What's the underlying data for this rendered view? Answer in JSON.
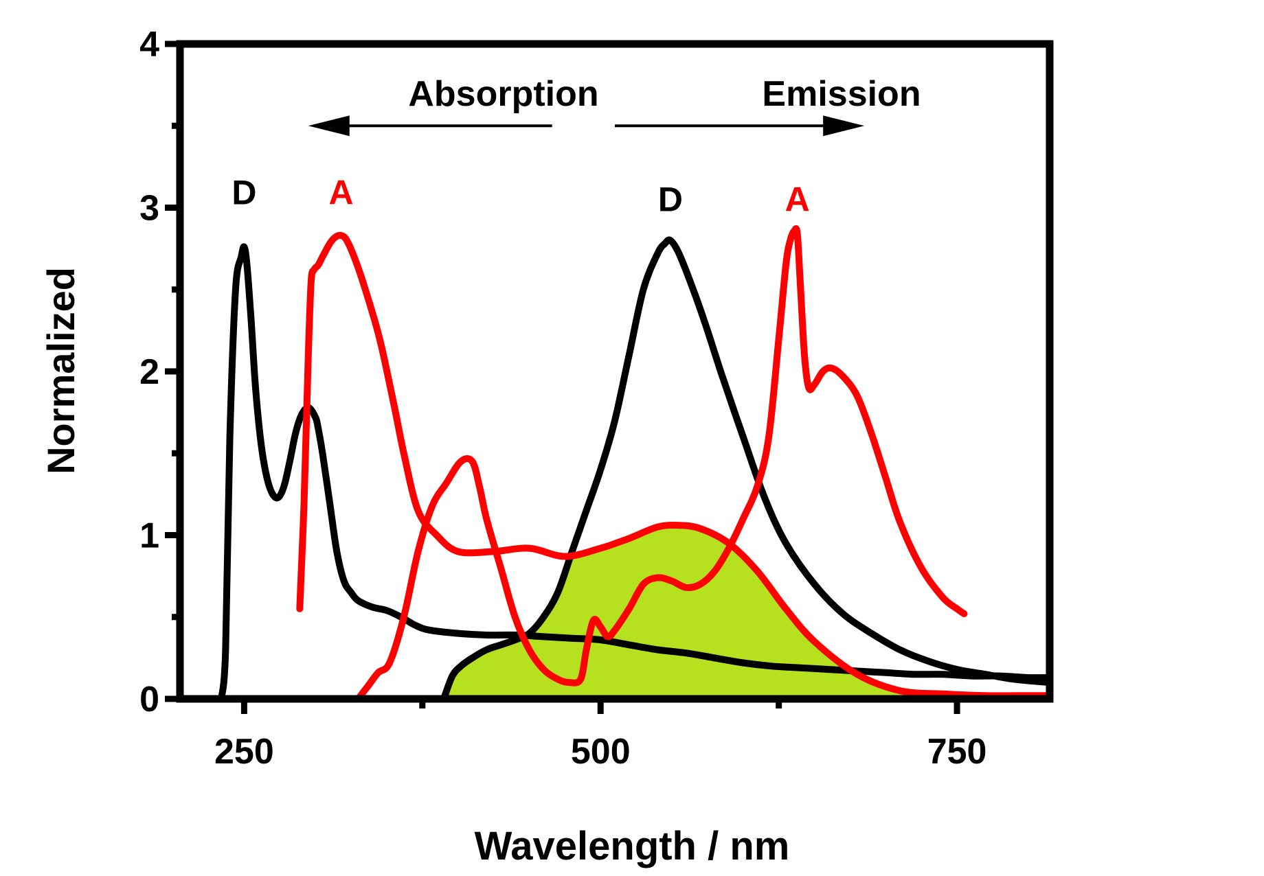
{
  "chart_data": {
    "type": "line",
    "xlabel": "Wavelength / nm",
    "ylabel": "Normalized",
    "xlim": [
      205,
      815
    ],
    "ylim": [
      0,
      4
    ],
    "x_ticks": [
      250,
      500,
      750
    ],
    "x_minor_ticks": [
      375,
      625
    ],
    "y_ticks": [
      0,
      1,
      2,
      3,
      4
    ],
    "y_minor_ticks": [
      0.5,
      1.5,
      2.5,
      3.5
    ],
    "grid": false,
    "annotations": {
      "absorption_label": "Absorption",
      "emission_label": "Emission",
      "absorption_arrow": {
        "from": 466,
        "to": 295
      },
      "emission_arrow": {
        "from": 510,
        "to": 685
      },
      "arrow_y": 3.5
    },
    "peak_labels": [
      {
        "text": "D",
        "x": 250,
        "y": 3.02,
        "color": "#000000"
      },
      {
        "text": "A",
        "x": 318,
        "y": 3.02,
        "color": "#ff0000"
      },
      {
        "text": "D",
        "x": 549,
        "y": 2.98,
        "color": "#000000"
      },
      {
        "text": "A",
        "x": 638,
        "y": 2.98,
        "color": "#ff0000"
      }
    ],
    "overlap_fill": {
      "label": "spectral overlap",
      "color": "#b5e11e"
    },
    "series": [
      {
        "name": "D absorption",
        "color": "#000000",
        "x": [
          234,
          237,
          240,
          244,
          248,
          250,
          252,
          255,
          258,
          262,
          266,
          270,
          274,
          278,
          282,
          286,
          290,
          295,
          300,
          302,
          305,
          310,
          315,
          320,
          325,
          330,
          340,
          350,
          360,
          370,
          380,
          400,
          420,
          440,
          460,
          480,
          500,
          520,
          540,
          560,
          580,
          600,
          620,
          640,
          660,
          680,
          700,
          720,
          740,
          760,
          780,
          800,
          815
        ],
        "values": [
          0.0,
          0.3,
          1.6,
          2.5,
          2.7,
          2.76,
          2.65,
          2.3,
          1.9,
          1.55,
          1.35,
          1.25,
          1.23,
          1.3,
          1.45,
          1.62,
          1.73,
          1.78,
          1.72,
          1.65,
          1.5,
          1.2,
          0.9,
          0.72,
          0.65,
          0.6,
          0.56,
          0.54,
          0.5,
          0.45,
          0.42,
          0.4,
          0.39,
          0.39,
          0.38,
          0.37,
          0.36,
          0.33,
          0.3,
          0.28,
          0.25,
          0.22,
          0.2,
          0.19,
          0.18,
          0.17,
          0.16,
          0.15,
          0.15,
          0.14,
          0.14,
          0.13,
          0.13
        ]
      },
      {
        "name": "D emission",
        "color": "#000000",
        "x": [
          390,
          396,
          402,
          410,
          420,
          430,
          440,
          450,
          460,
          470,
          480,
          490,
          500,
          510,
          520,
          530,
          540,
          545,
          549,
          555,
          565,
          575,
          585,
          600,
          615,
          630,
          650,
          670,
          690,
          710,
          730,
          750,
          770,
          790,
          815
        ],
        "values": [
          0.0,
          0.14,
          0.2,
          0.25,
          0.3,
          0.33,
          0.36,
          0.4,
          0.5,
          0.65,
          0.9,
          1.15,
          1.4,
          1.7,
          2.1,
          2.5,
          2.72,
          2.78,
          2.8,
          2.72,
          2.5,
          2.25,
          1.98,
          1.6,
          1.23,
          0.95,
          0.7,
          0.52,
          0.4,
          0.3,
          0.23,
          0.18,
          0.15,
          0.12,
          0.1
        ]
      },
      {
        "name": "A absorption",
        "color": "#ff0000",
        "x": [
          289,
          292,
          295,
          297,
          299,
          302,
          305,
          310,
          314,
          318,
          322,
          328,
          335,
          345,
          355,
          362,
          372,
          385,
          400,
          425,
          450,
          475,
          500,
          520,
          540,
          555,
          570,
          590,
          610,
          630,
          650,
          680,
          710,
          740,
          770,
          800,
          815
        ],
        "values": [
          0.55,
          1.2,
          2.1,
          2.55,
          2.62,
          2.65,
          2.7,
          2.78,
          2.82,
          2.83,
          2.8,
          2.68,
          2.5,
          2.2,
          1.8,
          1.5,
          1.15,
          1.0,
          0.9,
          0.9,
          0.92,
          0.87,
          0.92,
          0.98,
          1.05,
          1.06,
          1.04,
          0.95,
          0.78,
          0.55,
          0.35,
          0.15,
          0.05,
          0.03,
          0.02,
          0.02,
          0.02
        ]
      },
      {
        "name": "A emission",
        "color": "#ff0000",
        "x": [
          330,
          337,
          344,
          352,
          362,
          372,
          382,
          392,
          402,
          410,
          415,
          420,
          430,
          440,
          450,
          460,
          470,
          478,
          486,
          490,
          495,
          500,
          505,
          510,
          520,
          530,
          540,
          550,
          560,
          570,
          580,
          590,
          600,
          610,
          618,
          625,
          630,
          633,
          636,
          638,
          640,
          643,
          646,
          650,
          656,
          662,
          670,
          680,
          690,
          700,
          710,
          725,
          740,
          750,
          755
        ],
        "values": [
          0.0,
          0.08,
          0.16,
          0.22,
          0.5,
          0.9,
          1.18,
          1.32,
          1.45,
          1.45,
          1.3,
          1.1,
          0.8,
          0.5,
          0.3,
          0.18,
          0.12,
          0.1,
          0.12,
          0.3,
          0.48,
          0.44,
          0.38,
          0.42,
          0.55,
          0.7,
          0.74,
          0.72,
          0.68,
          0.7,
          0.78,
          0.92,
          1.1,
          1.3,
          1.6,
          2.2,
          2.65,
          2.8,
          2.86,
          2.84,
          2.55,
          2.1,
          1.9,
          1.92,
          2.0,
          2.02,
          1.97,
          1.85,
          1.62,
          1.35,
          1.08,
          0.8,
          0.62,
          0.55,
          0.52
        ]
      }
    ]
  }
}
